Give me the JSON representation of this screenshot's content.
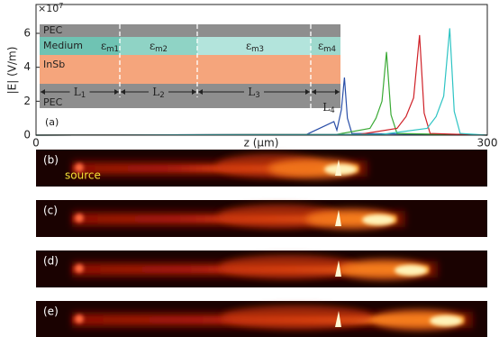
{
  "chart_data": {
    "type": "line",
    "xlabel": "z (μm)",
    "ylabel": "|E|  (V/m)",
    "multiplier": {
      "base": "×10",
      "exponent": "7"
    },
    "xlim": [
      0,
      300
    ],
    "ylim": [
      0,
      7.7
    ],
    "xticks": [
      0,
      300
    ],
    "yticks": [
      0,
      2,
      4,
      6
    ],
    "series": [
      {
        "color": "#2a4fa8",
        "x": [
          0,
          180,
          198,
          200,
          203,
          205,
          207,
          210,
          300
        ],
        "values": [
          0,
          0.05,
          0.8,
          0.3,
          1.5,
          3.4,
          1.0,
          0.1,
          0
        ]
      },
      {
        "color": "#3aaa35",
        "x": [
          0,
          200,
          222,
          226,
          230,
          233,
          236,
          240,
          300
        ],
        "values": [
          0,
          0.05,
          0.4,
          1.0,
          2.0,
          4.9,
          1.2,
          0.1,
          0
        ]
      },
      {
        "color": "#cf2027",
        "x": [
          0,
          215,
          240,
          246,
          251,
          255,
          258,
          262,
          300
        ],
        "values": [
          0,
          0.05,
          0.4,
          1.1,
          2.2,
          5.9,
          1.3,
          0.1,
          0
        ]
      },
      {
        "color": "#2ec4c4",
        "x": [
          0,
          230,
          260,
          266,
          271,
          275,
          278,
          282,
          300
        ],
        "values": [
          0,
          0.05,
          0.4,
          1.1,
          2.3,
          6.3,
          1.4,
          0.1,
          0
        ]
      }
    ]
  },
  "inset": {
    "layers": [
      "PEC",
      "Medium",
      "InSb",
      "PEC"
    ],
    "media": [
      {
        "symbol": "ε",
        "sub": "m1"
      },
      {
        "symbol": "ε",
        "sub": "m2"
      },
      {
        "symbol": "ε",
        "sub": "m3"
      },
      {
        "symbol": "ε",
        "sub": "m4"
      }
    ],
    "lengths": [
      {
        "symbol": "L",
        "sub": "1"
      },
      {
        "symbol": "L",
        "sub": "2"
      },
      {
        "symbol": "L",
        "sub": "3"
      },
      {
        "symbol": "L",
        "sub": "4"
      }
    ],
    "panel_label": "(a)"
  },
  "panels": [
    {
      "label": "(b)"
    },
    {
      "label": "(c)"
    },
    {
      "label": "(d)"
    },
    {
      "label": "(e)"
    }
  ],
  "source_label": "source"
}
